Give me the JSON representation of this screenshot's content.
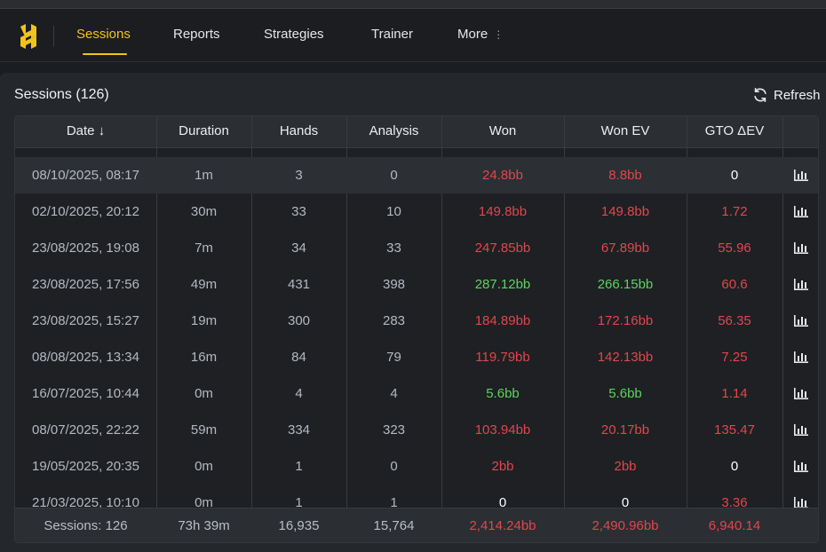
{
  "nav": {
    "items": [
      {
        "label": "Sessions",
        "active": true
      },
      {
        "label": "Reports",
        "active": false
      },
      {
        "label": "Strategies",
        "active": false
      },
      {
        "label": "Trainer",
        "active": false
      },
      {
        "label": "More",
        "active": false
      }
    ],
    "more_icon": "⋮"
  },
  "colors": {
    "accent": "#f2c31b",
    "negative": "#e0474c",
    "positive": "#5fd35f"
  },
  "panel": {
    "title": "Sessions (126)",
    "refresh_label": "Refresh"
  },
  "table": {
    "columns": [
      "Date ↓",
      "Duration",
      "Hands",
      "Analysis",
      "Won",
      "Won EV",
      "GTO ΔEV"
    ],
    "rows": [
      {
        "date": "08/10/2025, 08:17",
        "duration": "1m",
        "hands": "3",
        "analysis": "0",
        "won": "24.8bb",
        "won_state": "neg",
        "won_ev": "8.8bb",
        "won_ev_state": "neg",
        "gto": "0",
        "gto_state": "zero",
        "highlight": true
      },
      {
        "date": "02/10/2025, 20:12",
        "duration": "30m",
        "hands": "33",
        "analysis": "10",
        "won": "149.8bb",
        "won_state": "neg",
        "won_ev": "149.8bb",
        "won_ev_state": "neg",
        "gto": "1.72",
        "gto_state": "neg"
      },
      {
        "date": "23/08/2025, 19:08",
        "duration": "7m",
        "hands": "34",
        "analysis": "33",
        "won": "247.85bb",
        "won_state": "neg",
        "won_ev": "67.89bb",
        "won_ev_state": "neg",
        "gto": "55.96",
        "gto_state": "neg"
      },
      {
        "date": "23/08/2025, 17:56",
        "duration": "49m",
        "hands": "431",
        "analysis": "398",
        "won": "287.12bb",
        "won_state": "pos",
        "won_ev": "266.15bb",
        "won_ev_state": "pos",
        "gto": "60.6",
        "gto_state": "neg"
      },
      {
        "date": "23/08/2025, 15:27",
        "duration": "19m",
        "hands": "300",
        "analysis": "283",
        "won": "184.89bb",
        "won_state": "neg",
        "won_ev": "172.16bb",
        "won_ev_state": "neg",
        "gto": "56.35",
        "gto_state": "neg"
      },
      {
        "date": "08/08/2025, 13:34",
        "duration": "16m",
        "hands": "84",
        "analysis": "79",
        "won": "119.79bb",
        "won_state": "neg",
        "won_ev": "142.13bb",
        "won_ev_state": "neg",
        "gto": "7.25",
        "gto_state": "neg"
      },
      {
        "date": "16/07/2025, 10:44",
        "duration": "0m",
        "hands": "4",
        "analysis": "4",
        "won": "5.6bb",
        "won_state": "pos",
        "won_ev": "5.6bb",
        "won_ev_state": "pos",
        "gto": "1.14",
        "gto_state": "neg"
      },
      {
        "date": "08/07/2025, 22:22",
        "duration": "59m",
        "hands": "334",
        "analysis": "323",
        "won": "103.94bb",
        "won_state": "neg",
        "won_ev": "20.17bb",
        "won_ev_state": "neg",
        "gto": "135.47",
        "gto_state": "neg"
      },
      {
        "date": "19/05/2025, 20:35",
        "duration": "0m",
        "hands": "1",
        "analysis": "0",
        "won": "2bb",
        "won_state": "neg",
        "won_ev": "2bb",
        "won_ev_state": "neg",
        "gto": "0",
        "gto_state": "zero"
      },
      {
        "date": "21/03/2025, 10:10",
        "duration": "0m",
        "hands": "1",
        "analysis": "1",
        "won": "0",
        "won_state": "zero",
        "won_ev": "0",
        "won_ev_state": "zero",
        "gto": "3.36",
        "gto_state": "neg"
      }
    ],
    "row_icon": "bar-chart-icon",
    "footer": {
      "date": "Sessions: 126",
      "duration": "73h 39m",
      "hands": "16,935",
      "analysis": "15,764",
      "won": "2,414.24bb",
      "won_ev": "2,490.96bb",
      "gto": "6,940.14"
    }
  }
}
